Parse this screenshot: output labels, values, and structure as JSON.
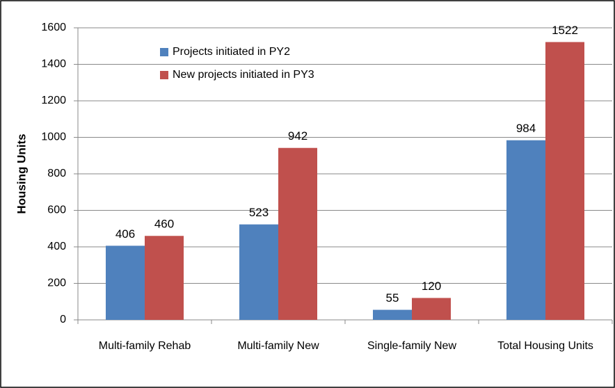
{
  "chart_data": {
    "type": "bar",
    "y_label": "Housing Units",
    "categories": [
      "Multi-family Rehab",
      "Multi-family New",
      "Single-family New",
      "Total Housing Units"
    ],
    "series": [
      {
        "name": "Projects initiated in PY2",
        "color": "#4f81bd",
        "values": [
          406,
          523,
          55,
          984
        ]
      },
      {
        "name": "New projects initiated in PY3",
        "color": "#c0504d",
        "values": [
          460,
          942,
          120,
          1522
        ]
      }
    ],
    "ylim": [
      0,
      1600
    ],
    "yticks": [
      0,
      200,
      400,
      600,
      800,
      1000,
      1200,
      1400,
      1600
    ],
    "grid": true,
    "legend": "top-left"
  }
}
